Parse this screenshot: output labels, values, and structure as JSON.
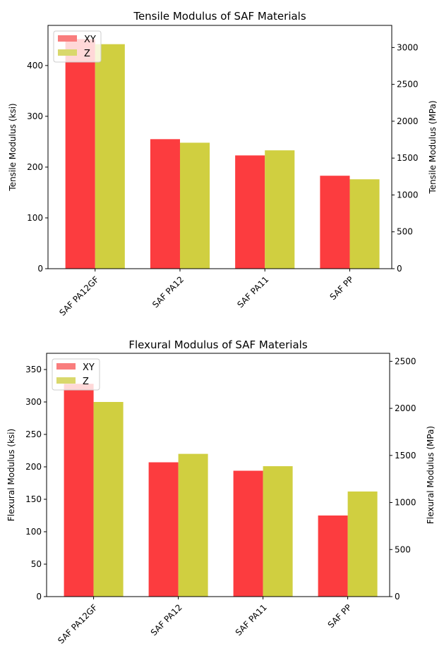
{
  "colors": {
    "XY": "#fc3c3f",
    "Z": "#d0cf40",
    "XY_legend": "#f97d7d",
    "Z_legend": "#d9d86c"
  },
  "chart_data": [
    {
      "type": "bar",
      "title": "Tensile Modulus of SAF Materials",
      "xlabel": "",
      "ylabel": "Tensile Modulus (ksi)",
      "ylabel_right": "Tensile Modulus (MPa)",
      "categories": [
        "SAF PA12GF",
        "SAF PA12",
        "SAF PA11",
        "SAF PP"
      ],
      "series": [
        {
          "name": "XY",
          "values": [
            452,
            255,
            223,
            183
          ]
        },
        {
          "name": "Z",
          "values": [
            442,
            248,
            233,
            176
          ]
        }
      ],
      "ylim": [
        0,
        479
      ],
      "yticks": [
        0,
        100,
        200,
        300,
        400
      ],
      "ylim_right": [
        0,
        3300
      ],
      "yticks_right": [
        0,
        500,
        1000,
        1500,
        2000,
        2500,
        3000
      ],
      "legend": "top-left",
      "grid": false
    },
    {
      "type": "bar",
      "title": "Flexural Modulus of SAF Materials",
      "xlabel": "",
      "ylabel": "Flexural Modulus (ksi)",
      "ylabel_right": "Flexural Modulus (MPa)",
      "categories": [
        "SAF PA12GF",
        "SAF PA12",
        "SAF PA11",
        "SAF PP"
      ],
      "series": [
        {
          "name": "XY",
          "values": [
            328,
            207,
            194,
            125
          ]
        },
        {
          "name": "Z",
          "values": [
            300,
            220,
            201,
            162
          ]
        }
      ],
      "ylim": [
        0,
        375
      ],
      "yticks": [
        0,
        50,
        100,
        150,
        200,
        250,
        300,
        350
      ],
      "ylim_right": [
        0,
        2585
      ],
      "yticks_right": [
        0,
        500,
        1000,
        1500,
        2000,
        2500
      ],
      "legend": "top-left",
      "grid": false
    }
  ]
}
